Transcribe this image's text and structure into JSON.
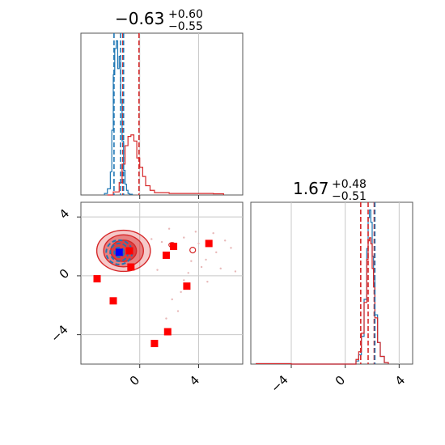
{
  "colors": {
    "red": "#d62728",
    "blue": "#1f77b4",
    "marker_red": "#ff0000",
    "marker_blue": "#0000ff"
  },
  "titles": {
    "param1": {
      "value": "−0.63",
      "plus": "+0.60",
      "minus": "−0.55"
    },
    "param2": {
      "value": "1.67",
      "plus": "+0.48",
      "minus": "−0.51"
    }
  },
  "chart_data": [
    {
      "type": "line",
      "panel": "top-left histogram (parameter 1 marginal)",
      "xlim": [
        -4,
        7
      ],
      "grid": true,
      "series": [
        {
          "color": "#1f77b4",
          "x": [
            -2.4,
            -2.2,
            -2.0,
            -1.9,
            -1.8,
            -1.7,
            -1.6,
            -1.5,
            -1.4,
            -1.3,
            -1.2,
            -1.1,
            -1.0,
            -0.9,
            -0.8,
            -0.7,
            -0.5
          ],
          "y": [
            0.01,
            0.04,
            0.15,
            0.42,
            0.78,
            0.95,
            1.0,
            0.82,
            0.9,
            0.62,
            0.35,
            0.16,
            0.07,
            0.03,
            0.01,
            0.005,
            0.0
          ]
        },
        {
          "color": "#d62728",
          "x": [
            -2.2,
            -1.8,
            -1.4,
            -1.2,
            -1.0,
            -0.8,
            -0.6,
            -0.4,
            -0.2,
            0.0,
            0.2,
            0.4,
            0.7,
            1.0,
            2.0,
            3.0,
            4.0,
            5.0,
            5.7
          ],
          "y": [
            0.0,
            0.02,
            0.08,
            0.2,
            0.32,
            0.38,
            0.39,
            0.35,
            0.24,
            0.18,
            0.12,
            0.06,
            0.03,
            0.015,
            0.01,
            0.01,
            0.01,
            0.008,
            0.0
          ]
        }
      ],
      "vlines": [
        {
          "x": -1.75,
          "color": "#1f77b4"
        },
        {
          "x": -1.3,
          "color": "#1f77b4"
        },
        {
          "x": -1.15,
          "color": "#d62728"
        },
        {
          "x": -1.1,
          "color": "#1f77b4"
        },
        {
          "x": -0.05,
          "color": "#d62728"
        }
      ]
    },
    {
      "type": "scatter",
      "panel": "bottom-left 2D (parameter 1 vs parameter 2)",
      "xlim": [
        -4,
        7
      ],
      "ylim": [
        -6,
        5
      ],
      "xticks": [
        "0",
        "4"
      ],
      "yticks": [
        "−4",
        "0",
        "4"
      ],
      "grid": true,
      "red_markers": [
        {
          "x": -2.9,
          "y": -0.2
        },
        {
          "x": -1.8,
          "y": -1.7
        },
        {
          "x": -0.6,
          "y": 0.6
        },
        {
          "x": -0.7,
          "y": 1.7
        },
        {
          "x": 1.0,
          "y": -4.6
        },
        {
          "x": 1.9,
          "y": -3.8
        },
        {
          "x": 1.8,
          "y": 1.4
        },
        {
          "x": 2.3,
          "y": 2.0
        },
        {
          "x": 3.2,
          "y": -0.7
        },
        {
          "x": 4.7,
          "y": 2.2
        }
      ],
      "blue_marker": {
        "x": -1.4,
        "y": 1.6
      },
      "contour_center": {
        "x": -1.1,
        "y": 1.7
      },
      "sample_points": [
        {
          "x": 1.5,
          "y": 2.3
        },
        {
          "x": 2.4,
          "y": 1.9
        },
        {
          "x": 3.0,
          "y": 2.6
        },
        {
          "x": 3.5,
          "y": 1.0
        },
        {
          "x": 4.0,
          "y": 2.2
        },
        {
          "x": 5.2,
          "y": 1.6
        },
        {
          "x": 5.5,
          "y": 0.5
        },
        {
          "x": 3.3,
          "y": 0.2
        },
        {
          "x": 2.8,
          "y": -1.1
        },
        {
          "x": 2.6,
          "y": -2.4
        },
        {
          "x": 1.8,
          "y": -2.9
        },
        {
          "x": 4.5,
          "y": 1.1
        },
        {
          "x": 6.2,
          "y": 1.9
        },
        {
          "x": 0.8,
          "y": 2.5
        },
        {
          "x": 2.0,
          "y": 3.2
        },
        {
          "x": 3.8,
          "y": 3.0
        },
        {
          "x": 5.0,
          "y": 2.9
        },
        {
          "x": 4.2,
          "y": 0.6
        },
        {
          "x": 6.5,
          "y": 0.3
        },
        {
          "x": 1.2,
          "y": 0.4
        },
        {
          "x": 3.0,
          "y": -0.3
        },
        {
          "x": 2.2,
          "y": -1.6
        },
        {
          "x": 5.8,
          "y": 2.4
        },
        {
          "x": 4.6,
          "y": -0.4
        }
      ]
    },
    {
      "type": "line",
      "panel": "bottom-right histogram (parameter 2 marginal)",
      "xlim": [
        -7,
        5
      ],
      "xticks": [
        "−4",
        "0",
        "4"
      ],
      "grid": true,
      "series": [
        {
          "color": "#1f77b4",
          "x": [
            -6.6,
            -4.0,
            0.4,
            0.8,
            1.0,
            1.2,
            1.4,
            1.6,
            1.7,
            1.8,
            1.9,
            2.0,
            2.1,
            2.2,
            2.4,
            2.6,
            2.9,
            3.2
          ],
          "y": [
            0.003,
            0.0,
            0.0,
            0.02,
            0.06,
            0.18,
            0.42,
            0.75,
            0.95,
            1.0,
            0.92,
            0.7,
            0.55,
            0.32,
            0.14,
            0.05,
            0.01,
            0.0
          ]
        },
        {
          "color": "#d62728",
          "x": [
            -6.6,
            -4.0,
            0.4,
            0.8,
            1.0,
            1.2,
            1.4,
            1.6,
            1.7,
            1.8,
            1.9,
            2.0,
            2.1,
            2.2,
            2.4,
            2.6,
            2.9,
            3.2
          ],
          "y": [
            0.003,
            0.0,
            0.0,
            0.03,
            0.08,
            0.2,
            0.4,
            0.68,
            0.8,
            0.82,
            0.78,
            0.62,
            0.5,
            0.3,
            0.14,
            0.05,
            0.01,
            0.0
          ]
        }
      ],
      "vlines": [
        {
          "x": 1.15,
          "color": "#d62728"
        },
        {
          "x": 1.7,
          "color": "#d62728"
        },
        {
          "x": 2.15,
          "color": "#d62728"
        },
        {
          "x": 2.2,
          "color": "#1f77b4"
        }
      ]
    }
  ]
}
